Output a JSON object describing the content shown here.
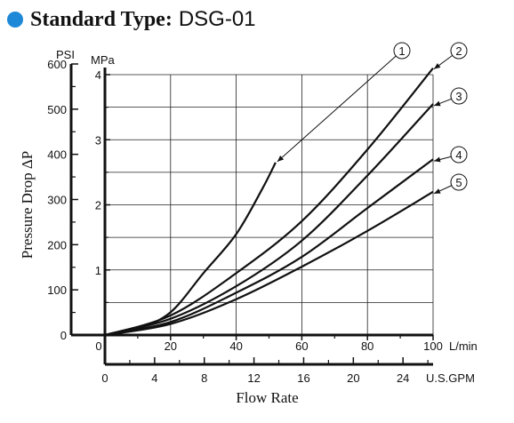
{
  "header": {
    "title_bold": "Standard Type:",
    "title_model": "DSG-01",
    "bullet_color": "#1e88d8"
  },
  "chart_data": {
    "type": "line",
    "xlabel": "Flow Rate",
    "ylabel": "Pressure Drop ΔP",
    "x_unit": "L/min",
    "x2_unit": "U.S.GPM",
    "y_unit": "MPa",
    "y2_unit": "PSI",
    "xlim": [
      0,
      100
    ],
    "ylim": [
      0,
      4
    ],
    "x_ticks": [
      0,
      20,
      40,
      60,
      80,
      100
    ],
    "x2_ticks": [
      0,
      4,
      8,
      12,
      16,
      20,
      24
    ],
    "y_ticks": [
      1,
      2,
      3,
      4
    ],
    "y2_ticks": [
      0,
      100,
      200,
      300,
      400,
      500,
      600
    ],
    "grid": true,
    "series": [
      {
        "name": "1",
        "x": [
          0,
          10,
          20,
          30,
          40,
          48,
          52
        ],
        "y": [
          0,
          0.1,
          0.35,
          0.95,
          1.55,
          2.25,
          2.65
        ]
      },
      {
        "name": "2",
        "x": [
          0,
          20,
          40,
          60,
          80,
          100
        ],
        "y": [
          0,
          0.3,
          0.95,
          1.75,
          2.85,
          4.1
        ]
      },
      {
        "name": "3",
        "x": [
          0,
          20,
          40,
          60,
          80,
          100
        ],
        "y": [
          0,
          0.25,
          0.75,
          1.45,
          2.45,
          3.55
        ]
      },
      {
        "name": "4",
        "x": [
          0,
          20,
          40,
          60,
          80,
          100
        ],
        "y": [
          0,
          0.2,
          0.65,
          1.2,
          1.95,
          2.7
        ]
      },
      {
        "name": "5",
        "x": [
          0,
          20,
          40,
          60,
          80,
          100
        ],
        "y": [
          0,
          0.17,
          0.55,
          1.05,
          1.6,
          2.2
        ]
      }
    ]
  }
}
